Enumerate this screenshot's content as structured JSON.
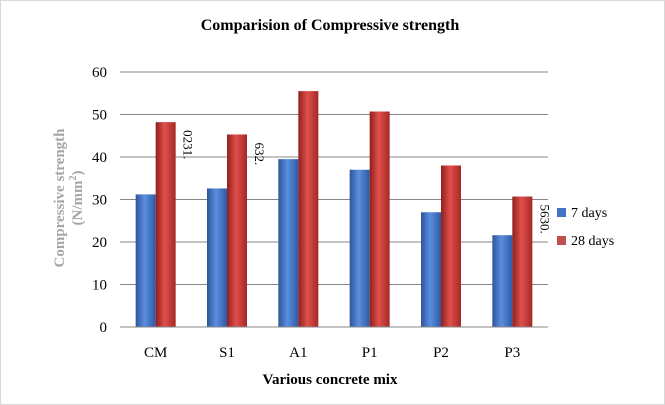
{
  "chart_data": {
    "type": "bar",
    "title": "Comparision of Compressive strength",
    "xlabel": "Various concrete mix",
    "ylabel_line1": "Compressive  strength",
    "ylabel_line2": "(N/mm",
    "ylabel_sup": "2",
    "ylabel_close": ")",
    "categories": [
      "CM",
      "S1",
      "A1",
      "P1",
      "P2",
      "P3"
    ],
    "ylim": [
      0,
      60
    ],
    "yticks": [
      0,
      10,
      20,
      30,
      40,
      50,
      60
    ],
    "grid": true,
    "legend_position": "right",
    "series": [
      {
        "name": "7 days",
        "values": [
          31.2,
          32.6,
          39.5,
          37.0,
          27.0,
          21.6
        ],
        "color": "#4472c4"
      },
      {
        "name": "28 days",
        "values": [
          48.2,
          45.3,
          55.5,
          50.7,
          38.0,
          30.7
        ],
        "color": "#c0504d"
      }
    ],
    "annotations": [
      {
        "text": "0231.",
        "category_index": 0
      },
      {
        "text": "632.",
        "category_index": 1
      },
      {
        "text": "5630.",
        "category_index": 5
      }
    ]
  }
}
